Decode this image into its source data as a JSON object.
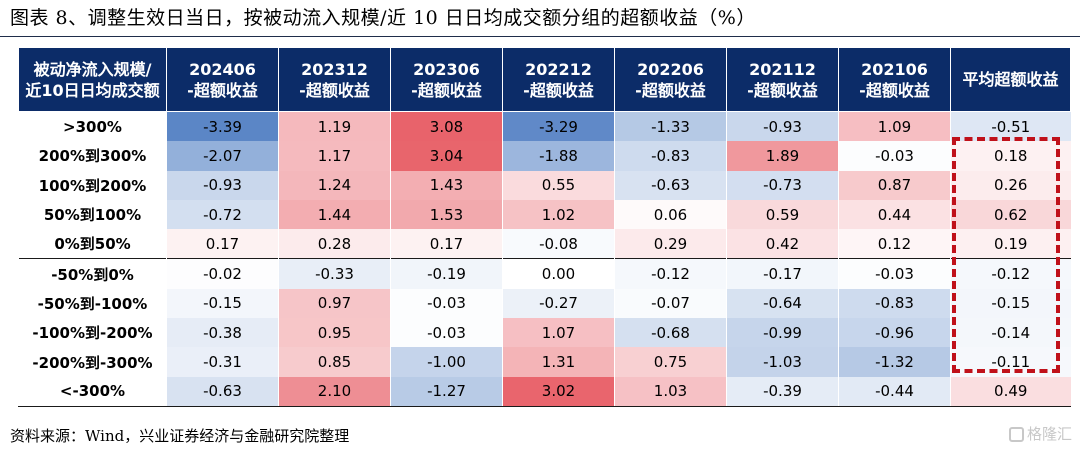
{
  "title": "图表 8、调整生效日当日，按被动流入规模/近 10 日日均成交额分组的超额收益（%）",
  "source": "资料来源：Wind，兴业证券经济与金融研究院整理",
  "watermark": "格隆汇",
  "colors": {
    "header_bg": "#0c2c68",
    "positive_max": "#e8626a",
    "negative_max": "#5b86c6",
    "highlight_box": "#c0111a"
  },
  "chart_data": {
    "type": "heatmap",
    "row_header": [
      "被动净流入规模/",
      "近10日日均成交额"
    ],
    "columns": [
      [
        "202406",
        "-超额收益"
      ],
      [
        "202312",
        "-超额收益"
      ],
      [
        "202306",
        "-超额收益"
      ],
      [
        "202212",
        "-超额收益"
      ],
      [
        "202206",
        "-超额收益"
      ],
      [
        "202112",
        "-超额收益"
      ],
      [
        "202106",
        "-超额收益"
      ]
    ],
    "avg_header": "平均超额收益",
    "rows": [
      ">300%",
      "200%到300%",
      "100%到200%",
      "50%到100%",
      "0%到50%",
      "-50%到0%",
      "-50%到-100%",
      "-100%到-200%",
      "-200%到-300%",
      "<-300%"
    ],
    "values": [
      [
        "-3.39",
        "1.19",
        "3.08",
        "-3.29",
        "-1.33",
        "-0.93",
        "1.09"
      ],
      [
        "-2.07",
        "1.17",
        "3.04",
        "-1.88",
        "-0.83",
        "1.89",
        "-0.03"
      ],
      [
        "-0.93",
        "1.24",
        "1.43",
        "0.55",
        "-0.63",
        "-0.73",
        "0.87"
      ],
      [
        "-0.72",
        "1.44",
        "1.53",
        "1.02",
        "0.06",
        "0.59",
        "0.44"
      ],
      [
        "0.17",
        "0.28",
        "0.17",
        "-0.08",
        "0.29",
        "0.42",
        "0.12"
      ],
      [
        "-0.02",
        "-0.33",
        "-0.19",
        "0.00",
        "-0.12",
        "-0.17",
        "-0.03"
      ],
      [
        "-0.15",
        "0.97",
        "-0.03",
        "-0.27",
        "-0.07",
        "-0.64",
        "-0.83"
      ],
      [
        "-0.38",
        "0.95",
        "-0.03",
        "1.07",
        "-0.68",
        "-0.99",
        "-0.96"
      ],
      [
        "-0.31",
        "0.85",
        "-1.00",
        "1.31",
        "0.75",
        "-1.03",
        "-1.32"
      ],
      [
        "-0.63",
        "2.10",
        "-1.27",
        "3.02",
        "1.03",
        "-0.39",
        "-0.44"
      ]
    ],
    "averages": [
      "-0.51",
      "0.18",
      "0.26",
      "0.62",
      "0.19",
      "-0.12",
      "-0.15",
      "-0.14",
      "-0.11",
      "0.49"
    ],
    "highlighted_averages_rows": [
      "200%到300%",
      "-200%到-300%"
    ],
    "unit": "%"
  }
}
